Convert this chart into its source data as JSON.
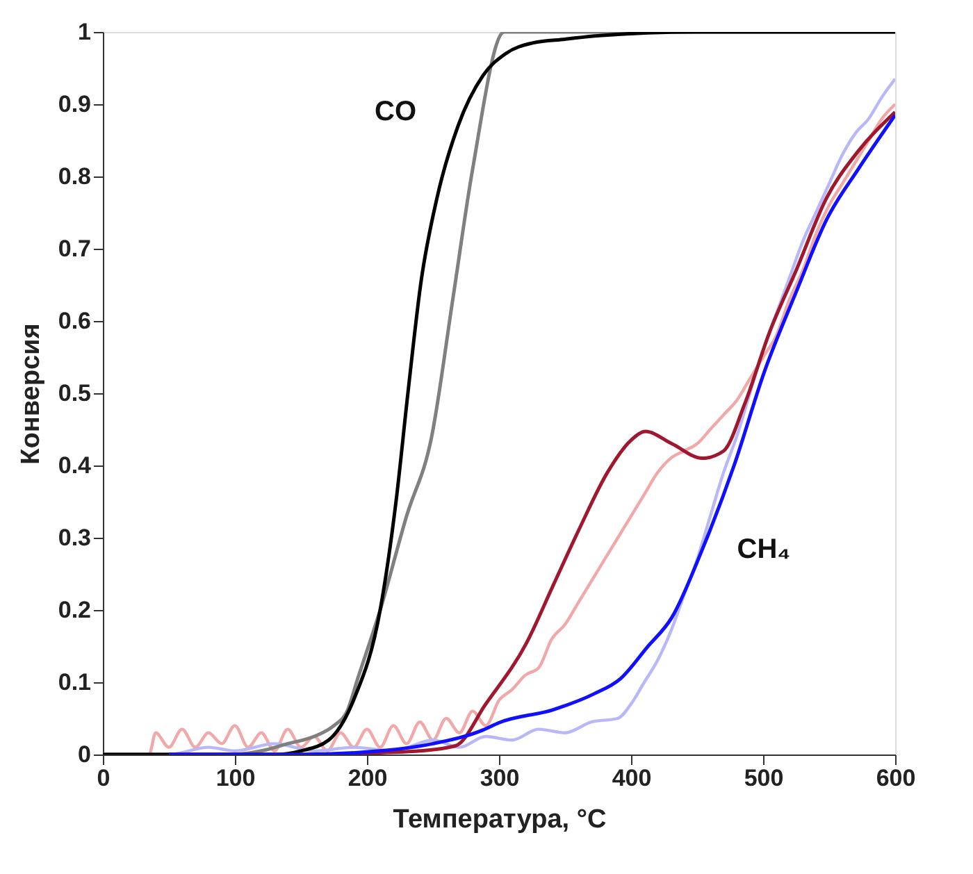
{
  "chart_data": {
    "type": "line",
    "xlabel": "Температура, °C",
    "ylabel": "Конверсия",
    "xlim": [
      0,
      600
    ],
    "xticks": [
      0,
      100,
      200,
      300,
      400,
      500,
      600
    ],
    "ylim": [
      0,
      1
    ],
    "yticks": [
      0,
      0.1,
      0.2,
      0.3,
      0.4,
      0.5,
      0.6,
      0.7,
      0.8,
      0.9,
      1
    ],
    "grid": false,
    "marker": "none",
    "line_style": "solid",
    "series": [
      {
        "color": "#f0a8a8",
        "x": [
          0,
          35,
          40,
          50,
          60,
          70,
          80,
          90,
          100,
          110,
          120,
          130,
          140,
          150,
          160,
          170,
          180,
          190,
          200,
          210,
          220,
          230,
          240,
          250,
          260,
          270,
          280,
          290,
          300,
          310,
          320,
          330,
          340,
          350,
          360,
          370,
          380,
          390,
          400,
          410,
          420,
          430,
          440,
          450,
          460,
          470,
          480,
          490,
          500,
          510,
          520,
          530,
          540,
          550,
          560,
          570,
          580,
          590,
          600
        ],
        "values": [
          0,
          0,
          0.03,
          0.01,
          0.035,
          0.01,
          0.03,
          0.015,
          0.04,
          0.01,
          0.03,
          0.005,
          0.035,
          0.01,
          0.025,
          0.005,
          0.03,
          0.01,
          0.035,
          0.01,
          0.04,
          0.015,
          0.045,
          0.02,
          0.05,
          0.03,
          0.06,
          0.04,
          0.075,
          0.09,
          0.11,
          0.12,
          0.16,
          0.18,
          0.21,
          0.24,
          0.27,
          0.3,
          0.33,
          0.36,
          0.39,
          0.41,
          0.42,
          0.43,
          0.45,
          0.47,
          0.49,
          0.52,
          0.55,
          0.58,
          0.63,
          0.67,
          0.72,
          0.76,
          0.79,
          0.82,
          0.85,
          0.88,
          0.9
        ]
      },
      {
        "color": "#b8b8f8",
        "x": [
          0,
          50,
          80,
          100,
          130,
          160,
          190,
          220,
          250,
          270,
          290,
          310,
          330,
          350,
          370,
          390,
          400,
          410,
          420,
          430,
          440,
          450,
          460,
          470,
          480,
          490,
          500,
          510,
          520,
          530,
          540,
          550,
          560,
          570,
          580,
          590,
          600
        ],
        "values": [
          0,
          0,
          0.01,
          0.005,
          0.015,
          0.005,
          0.01,
          0.005,
          0.02,
          0.01,
          0.025,
          0.02,
          0.035,
          0.03,
          0.045,
          0.05,
          0.07,
          0.1,
          0.13,
          0.17,
          0.22,
          0.27,
          0.33,
          0.39,
          0.44,
          0.5,
          0.56,
          0.61,
          0.66,
          0.71,
          0.75,
          0.79,
          0.83,
          0.86,
          0.88,
          0.91,
          0.935
        ]
      },
      {
        "color": "#808080",
        "x": [
          0,
          100,
          120,
          140,
          160,
          175,
          185,
          193,
          210,
          230,
          249,
          265,
          280,
          304,
          600
        ],
        "values": [
          0,
          0,
          0.005,
          0.015,
          0.025,
          0.04,
          0.06,
          0.105,
          0.2,
          0.33,
          0.44,
          0.63,
          0.81,
          1,
          1
        ]
      },
      {
        "name": "CO",
        "color": "#000000",
        "x": [
          0,
          100,
          131,
          150,
          171,
          190,
          210,
          222,
          231,
          241,
          253,
          269,
          288,
          305,
          326,
          350,
          376,
          450,
          600
        ],
        "values": [
          0,
          0,
          0,
          0.005,
          0.02,
          0.076,
          0.2,
          0.35,
          0.5,
          0.655,
          0.77,
          0.87,
          0.94,
          0.97,
          0.985,
          0.99,
          0.995,
          1,
          1
        ]
      },
      {
        "color": "#a0182e",
        "x": [
          50,
          150,
          200,
          240,
          267,
          290,
          321,
          341,
          361,
          382,
          400,
          411,
          431,
          454,
          470,
          486,
          505,
          525,
          548,
          572,
          600
        ],
        "values": [
          0,
          0,
          0.002,
          0.005,
          0.012,
          0.07,
          0.155,
          0.234,
          0.313,
          0.39,
          0.435,
          0.447,
          0.43,
          0.41,
          0.42,
          0.485,
          0.585,
          0.67,
          0.77,
          0.835,
          0.889
        ]
      },
      {
        "name": "CH₄",
        "color": "#1010ff",
        "x": [
          50,
          150,
          210,
          250,
          288,
          300,
          341,
          372,
          392,
          412,
          431,
          454,
          478,
          501,
          525,
          548,
          572,
          600
        ],
        "values": [
          0,
          0,
          0.005,
          0.015,
          0.034,
          0.044,
          0.062,
          0.084,
          0.105,
          0.148,
          0.19,
          0.284,
          0.4,
          0.53,
          0.64,
          0.74,
          0.81,
          0.885
        ]
      }
    ]
  }
}
